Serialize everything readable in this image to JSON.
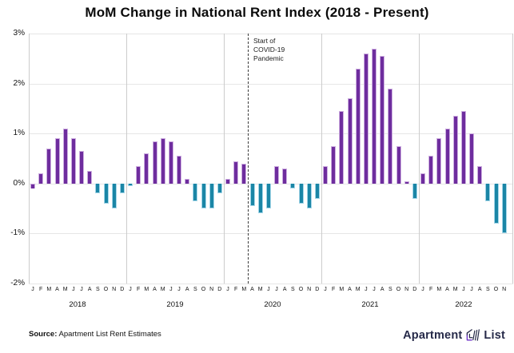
{
  "chart_data": {
    "type": "bar",
    "title": "MoM Change in National Rent Index (2018 - Present)",
    "ylabel": "",
    "ylim": [
      -2,
      3
    ],
    "ytick_labels": [
      "3%",
      "2%",
      "1%",
      "0%",
      "-1%",
      "-2%"
    ],
    "grid": true,
    "legend": false,
    "month_letters": [
      "J",
      "F",
      "M",
      "A",
      "M",
      "J",
      "J",
      "A",
      "S",
      "O",
      "N",
      "D"
    ],
    "series": [
      {
        "year": "2018",
        "values": [
          -0.1,
          0.2,
          0.7,
          0.9,
          1.1,
          0.9,
          0.65,
          0.25,
          -0.2,
          -0.4,
          -0.5,
          -0.2
        ]
      },
      {
        "year": "2019",
        "values": [
          -0.05,
          0.35,
          0.6,
          0.85,
          0.9,
          0.85,
          0.55,
          0.1,
          -0.35,
          -0.5,
          -0.5,
          -0.2
        ]
      },
      {
        "year": "2020",
        "values": [
          0.1,
          0.45,
          0.4,
          -0.45,
          -0.6,
          -0.5,
          0.35,
          0.3,
          -0.1,
          -0.4,
          -0.5,
          -0.3
        ]
      },
      {
        "year": "2021",
        "values": [
          0.35,
          0.75,
          1.45,
          1.7,
          2.3,
          2.6,
          2.7,
          2.55,
          1.9,
          0.75,
          0.05,
          -0.3
        ]
      },
      {
        "year": "2022",
        "values": [
          0.2,
          0.55,
          0.9,
          1.1,
          1.35,
          1.45,
          1.0,
          0.35,
          -0.35,
          -0.8,
          -1.0
        ]
      }
    ],
    "bar_color_exceptions": [
      {
        "year_index": 0,
        "month_index": 0,
        "color": "positive"
      }
    ],
    "annotation": {
      "text_lines": [
        "Start of",
        "COVID-19",
        "Pandemic"
      ],
      "year_index": 2,
      "month_index": 3
    },
    "colors": {
      "positive": "#6e2d9e",
      "negative": "#1b86a6",
      "positive_border": "#cdaee0",
      "negative_border": "#a4d6e8",
      "gridline": "#e6e6e6",
      "year_divider": "#cccccc"
    }
  },
  "footer": {
    "source_label": "Source:",
    "source_text": " Apartment List Rent Estimates",
    "logo_word_1": "Apartment",
    "logo_word_2": "List",
    "logo_navy": "#262a49",
    "logo_purple": "#6d30c7"
  }
}
